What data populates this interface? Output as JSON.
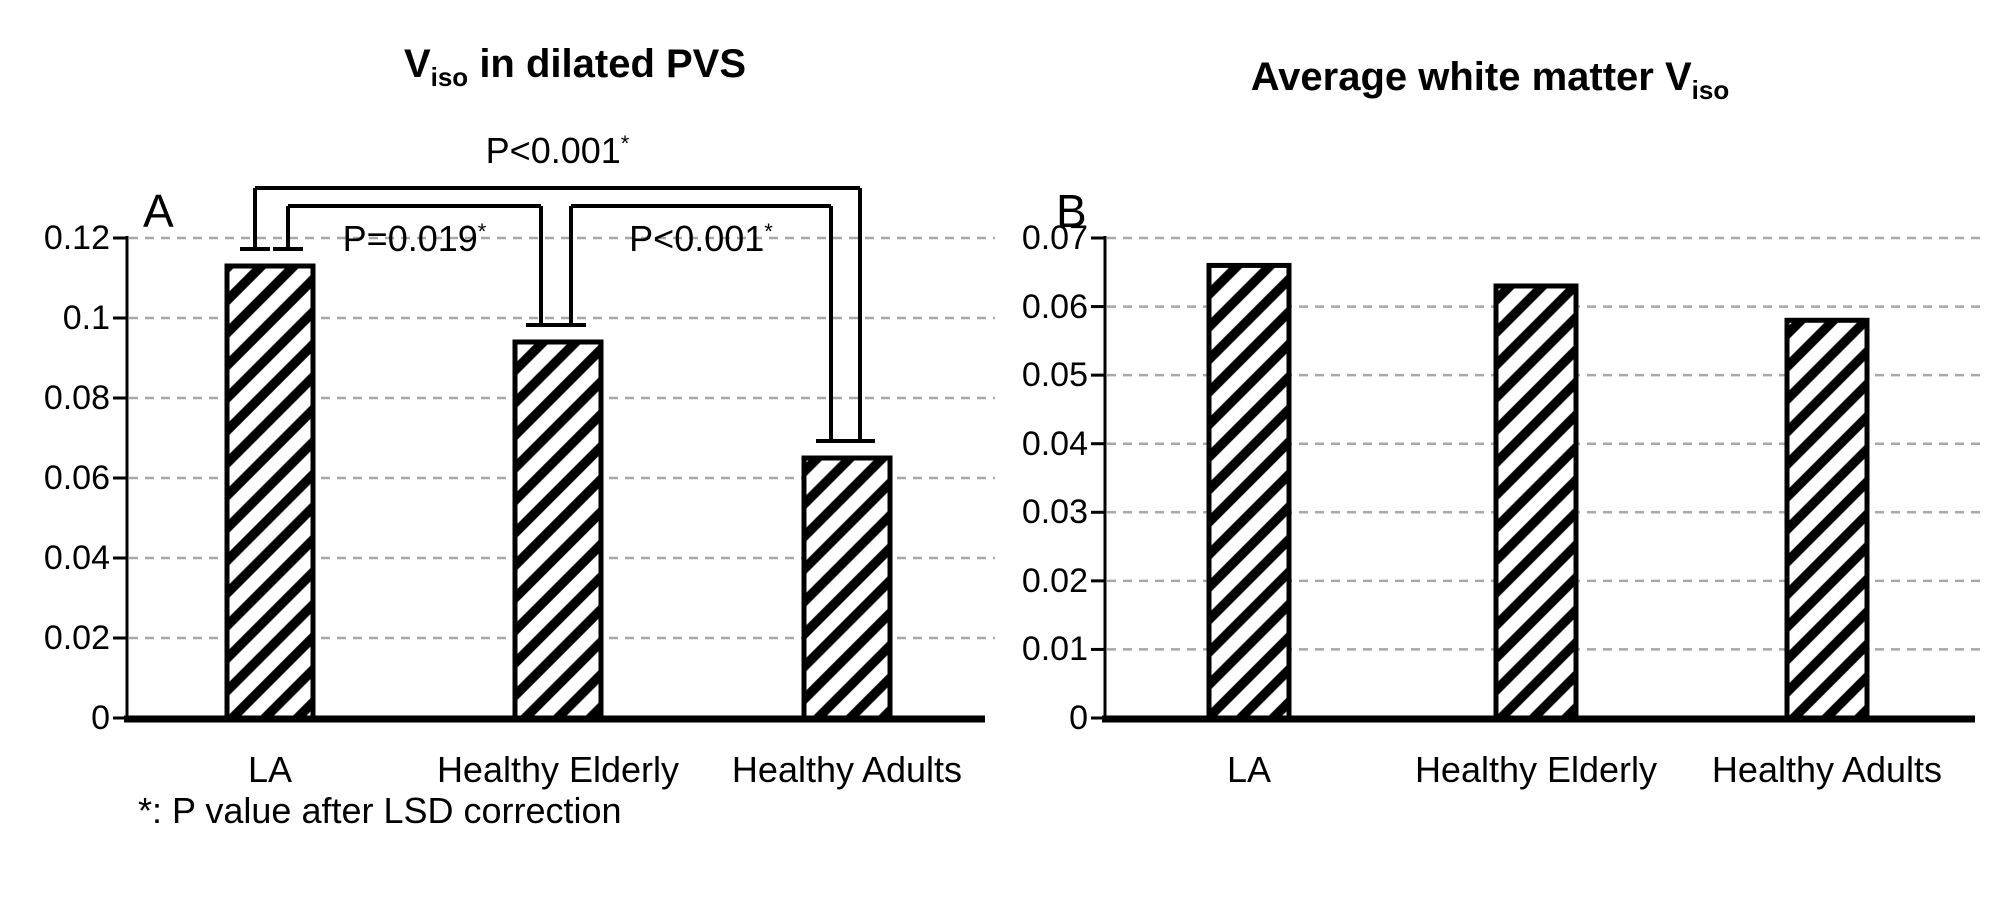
{
  "figure": {
    "background": "#ffffff",
    "footnote": "*: P value after LSD correction"
  },
  "colors": {
    "text": "#000000",
    "bar_fill": "#ffffff",
    "bar_hatch": "#000000",
    "bar_border": "#000000",
    "axis": "#000000",
    "gridline": "#a8a8a8"
  },
  "chart_data": [
    {
      "id": "A",
      "type": "bar",
      "panel_label": "A",
      "title": {
        "prefix": "V",
        "sub": "iso",
        "suffix": " in dilated PVS"
      },
      "categories": [
        "LA",
        "Healthy Elderly",
        "Healthy Adults"
      ],
      "values": [
        0.113,
        0.094,
        0.065
      ],
      "ylim": [
        0,
        0.12
      ],
      "ytick_labels": [
        "0",
        "0.02",
        "0.04",
        "0.06",
        "0.08",
        "0.1",
        "0.12"
      ],
      "grid": "horizontal-dashed",
      "bar_style": "diagonal-hatch",
      "legend": "none",
      "significance": [
        {
          "label": "P<0.001",
          "star": "*",
          "between": [
            "LA",
            "Healthy Adults"
          ]
        },
        {
          "label": "P=0.019",
          "star": "*",
          "between": [
            "LA",
            "Healthy Elderly"
          ]
        },
        {
          "label": "P<0.001",
          "star": "*",
          "between": [
            "Healthy Elderly",
            "Healthy Adults"
          ]
        }
      ]
    },
    {
      "id": "B",
      "type": "bar",
      "panel_label": "B",
      "title": {
        "prefix": "Average white matter V",
        "sub": "iso",
        "suffix": ""
      },
      "categories": [
        "LA",
        "Healthy Elderly",
        "Healthy Adults"
      ],
      "values": [
        0.066,
        0.063,
        0.058
      ],
      "ylim": [
        0,
        0.07
      ],
      "ytick_labels": [
        "0",
        "0.01",
        "0.02",
        "0.03",
        "0.04",
        "0.05",
        "0.06",
        "0.07"
      ],
      "grid": "horizontal-dashed",
      "bar_style": "diagonal-hatch",
      "legend": "none",
      "significance": []
    }
  ]
}
